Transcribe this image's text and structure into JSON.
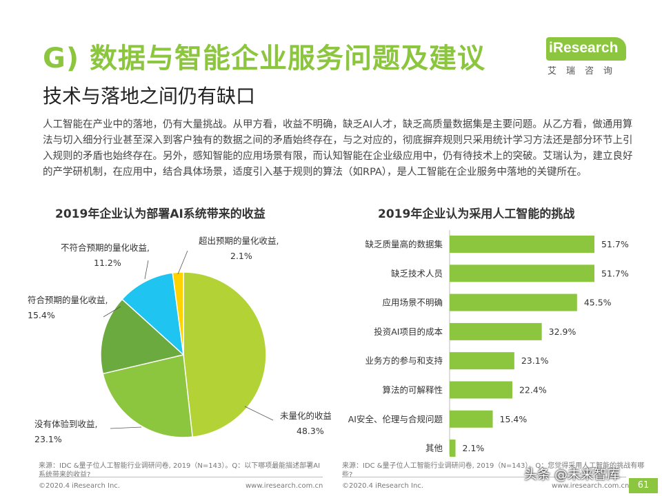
{
  "header": {
    "title": "G) 数据与智能企业服务问题及建议",
    "subtitle": "技术与落地之间仍有缺口",
    "intro": "人工智能在产业中的落地，仍有大量挑战。从甲方看，收益不明确，缺乏AI人才，缺乏高质量数据集是主要问题。从乙方看，做通用算法与切入细分行业甚至深入到客户独有的数据之间的矛盾始终存在，与之对应的，彻底摒弃规则只采用统计学习方法还是部分环节上引入规则的矛盾也始终存在。另外，感知智能的应用场景有限，而认知智能在企业级应用中，仍有待技术上的突破。艾瑞认为，建立良好的产学研机制，在应用中，结合具体场景，适度引入基于规则的算法（如RPA），是人工智能在企业服务中落地的关键所在。"
  },
  "logo": {
    "name": "iResearch",
    "sub": "艾瑞咨询"
  },
  "colors": {
    "accent": "#8cc63f"
  },
  "chart_data": [
    {
      "type": "pie",
      "title": "2019年企业认为部署AI系统带来的收益",
      "slices": [
        {
          "label": "未量化的收益,",
          "value": 48.3,
          "display": "48.3%",
          "color": "#b2d235"
        },
        {
          "label": "没有体验到收益,",
          "value": 23.1,
          "display": "23.1%",
          "color": "#8cc63f"
        },
        {
          "label": "符合预期的量化收益,",
          "value": 15.4,
          "display": "15.4%",
          "color": "#6aaa3f"
        },
        {
          "label": "不符合预期的量化收益,",
          "value": 11.2,
          "display": "11.2%",
          "color": "#1fc4f0"
        },
        {
          "label": "超出预期的量化收益,",
          "value": 2.1,
          "display": "2.1%",
          "color": "#ffd200"
        }
      ]
    },
    {
      "type": "bar",
      "orientation": "horizontal",
      "title": "2019年企业认为采用人工智能的挑战",
      "categories": [
        "缺乏质量高的数据集",
        "缺乏技术人员",
        "应用场景不明确",
        "投资AI项目的成本",
        "业务方的参与和支持",
        "算法的可解释性",
        "AI安全、伦理与合规问题",
        "其他"
      ],
      "values": [
        51.7,
        51.7,
        45.5,
        32.9,
        23.1,
        22.4,
        15.4,
        2.1
      ],
      "value_labels": [
        "51.7%",
        "51.7%",
        "45.5%",
        "32.9%",
        "23.1%",
        "22.4%",
        "15.4%",
        "2.1%"
      ],
      "color": "#8cc63f"
    }
  ],
  "footer": {
    "source_left": "来源：IDC &量子位人工智能行业调研问卷, 2019（N=143）。Q：以下哪项最能描述部署AI系统带来的收益?",
    "source_right": "来源：IDC &量子位人工智能行业调研问卷, 2019（N=143）。Q：您觉得采用人工智能的挑战有哪些?",
    "copyright": "©2020.4 iResearch Inc.",
    "url": "www.iresearch.com.cn",
    "page": "61",
    "watermark": "头条 @未来智库"
  }
}
